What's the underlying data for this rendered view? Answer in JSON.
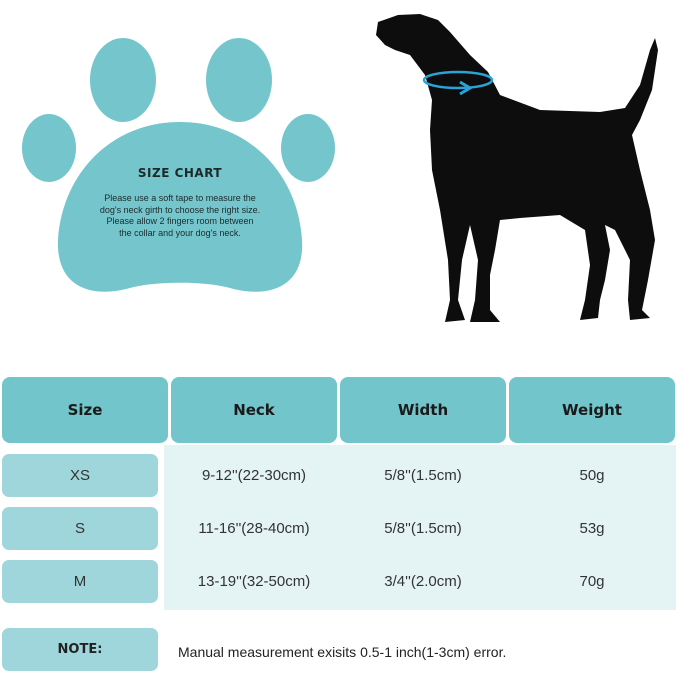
{
  "colors": {
    "accent": "#72c5cb",
    "pill": "#9ed6db",
    "table_bg": "#e4f4f5",
    "dog": "#0d0d0d",
    "tape": "#2aa3d8"
  },
  "paw": {
    "title": "SIZE CHART",
    "lines": [
      "Please use a soft tape to measure the",
      "dog's neck girth to choose the right size.",
      "Please allow 2 fingers room between",
      "the collar and your dog's neck."
    ]
  },
  "table": {
    "headers": [
      "Size",
      "Neck",
      "Width",
      "Weight"
    ],
    "rows": [
      [
        "XS",
        "9-12''(22-30cm)",
        "5/8''(1.5cm)",
        "50g"
      ],
      [
        "S",
        "11-16''(28-40cm)",
        "5/8''(1.5cm)",
        "53g"
      ],
      [
        "M",
        "13-19''(32-50cm)",
        "3/4''(2.0cm)",
        "70g"
      ]
    ]
  },
  "note": {
    "label": "NOTE:",
    "text": "Manual measurement exisits 0.5-1 inch(1-3cm) error."
  }
}
